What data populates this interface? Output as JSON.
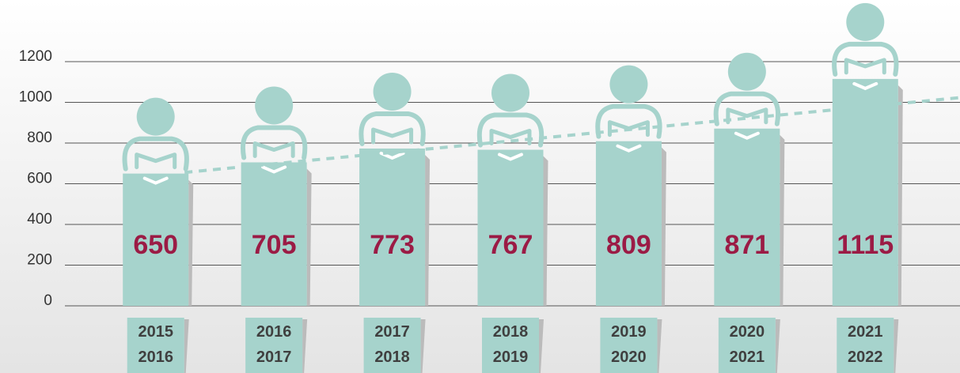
{
  "chart_data": {
    "type": "bar",
    "categories": [
      "2015\n2016",
      "2016\n2017",
      "2017\n2018",
      "2018\n2019",
      "2019\n2020",
      "2020\n2021",
      "2021\n2022"
    ],
    "values": [
      650,
      705,
      773,
      767,
      809,
      871,
      1115
    ],
    "color": "#a6d3cc",
    "label_color": "#9b1b45",
    "ylim": [
      0,
      1200
    ],
    "yticks": [
      0,
      200,
      400,
      600,
      800,
      1000,
      1200
    ],
    "grid": true,
    "trendline": true
  }
}
